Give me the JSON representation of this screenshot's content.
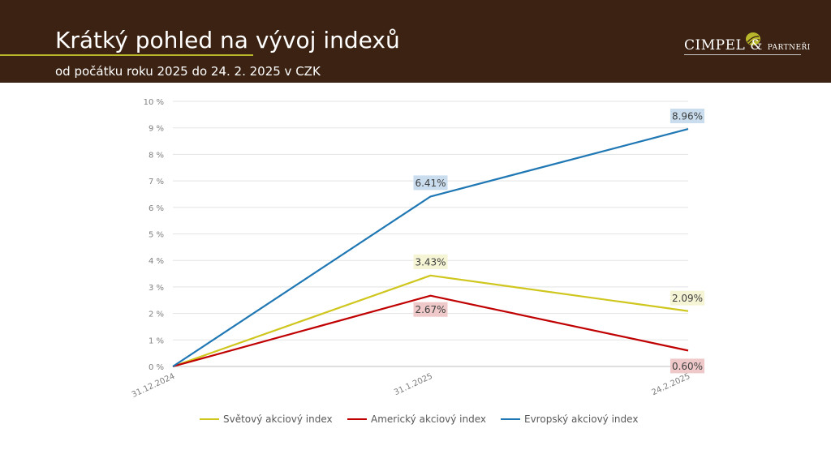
{
  "header": {
    "title": "Krátký pohled na vývoj indexů",
    "subtitle": "od počátku roku 2025 do 24. 2. 2025 v CZK",
    "logo_main": "CIMPEL",
    "logo_amp": "&",
    "logo_small": "PARTNEŘI"
  },
  "colors": {
    "header_bg": "#3b2212",
    "accent": "#b9b82a",
    "world": "#cfc61e",
    "american": "#c00000",
    "european": "#1f77b4"
  },
  "chart_data": {
    "type": "line",
    "title": "",
    "xlabel": "",
    "ylabel": "",
    "categories": [
      "31.12.2024",
      "31.1.2025",
      "24.2.2025"
    ],
    "y_ticks": [
      "0 %",
      "1 %",
      "2 %",
      "3 %",
      "4 %",
      "5 %",
      "6 %",
      "7 %",
      "8 %",
      "9 %",
      "10 %"
    ],
    "ylim": [
      0,
      10
    ],
    "grid": true,
    "legend_position": "bottom",
    "series": [
      {
        "name": "Světový akciový index",
        "values": [
          0,
          3.43,
          2.09
        ],
        "color": "#cfc61e",
        "labels": [
          "",
          "3.43%",
          "2.09%"
        ],
        "label_bg": "#f5f4d4"
      },
      {
        "name": "Americký akciový index",
        "values": [
          0,
          2.67,
          0.6
        ],
        "color": "#c00000",
        "labels": [
          "",
          "2.67%",
          "0.60%"
        ],
        "label_bg": "#efc9c9"
      },
      {
        "name": "Evropský akciový index",
        "values": [
          0,
          6.41,
          8.96
        ],
        "color": "#1f77b4",
        "labels": [
          "",
          "6.41%",
          "8.96%"
        ],
        "label_bg": "#c9ddee"
      }
    ]
  }
}
